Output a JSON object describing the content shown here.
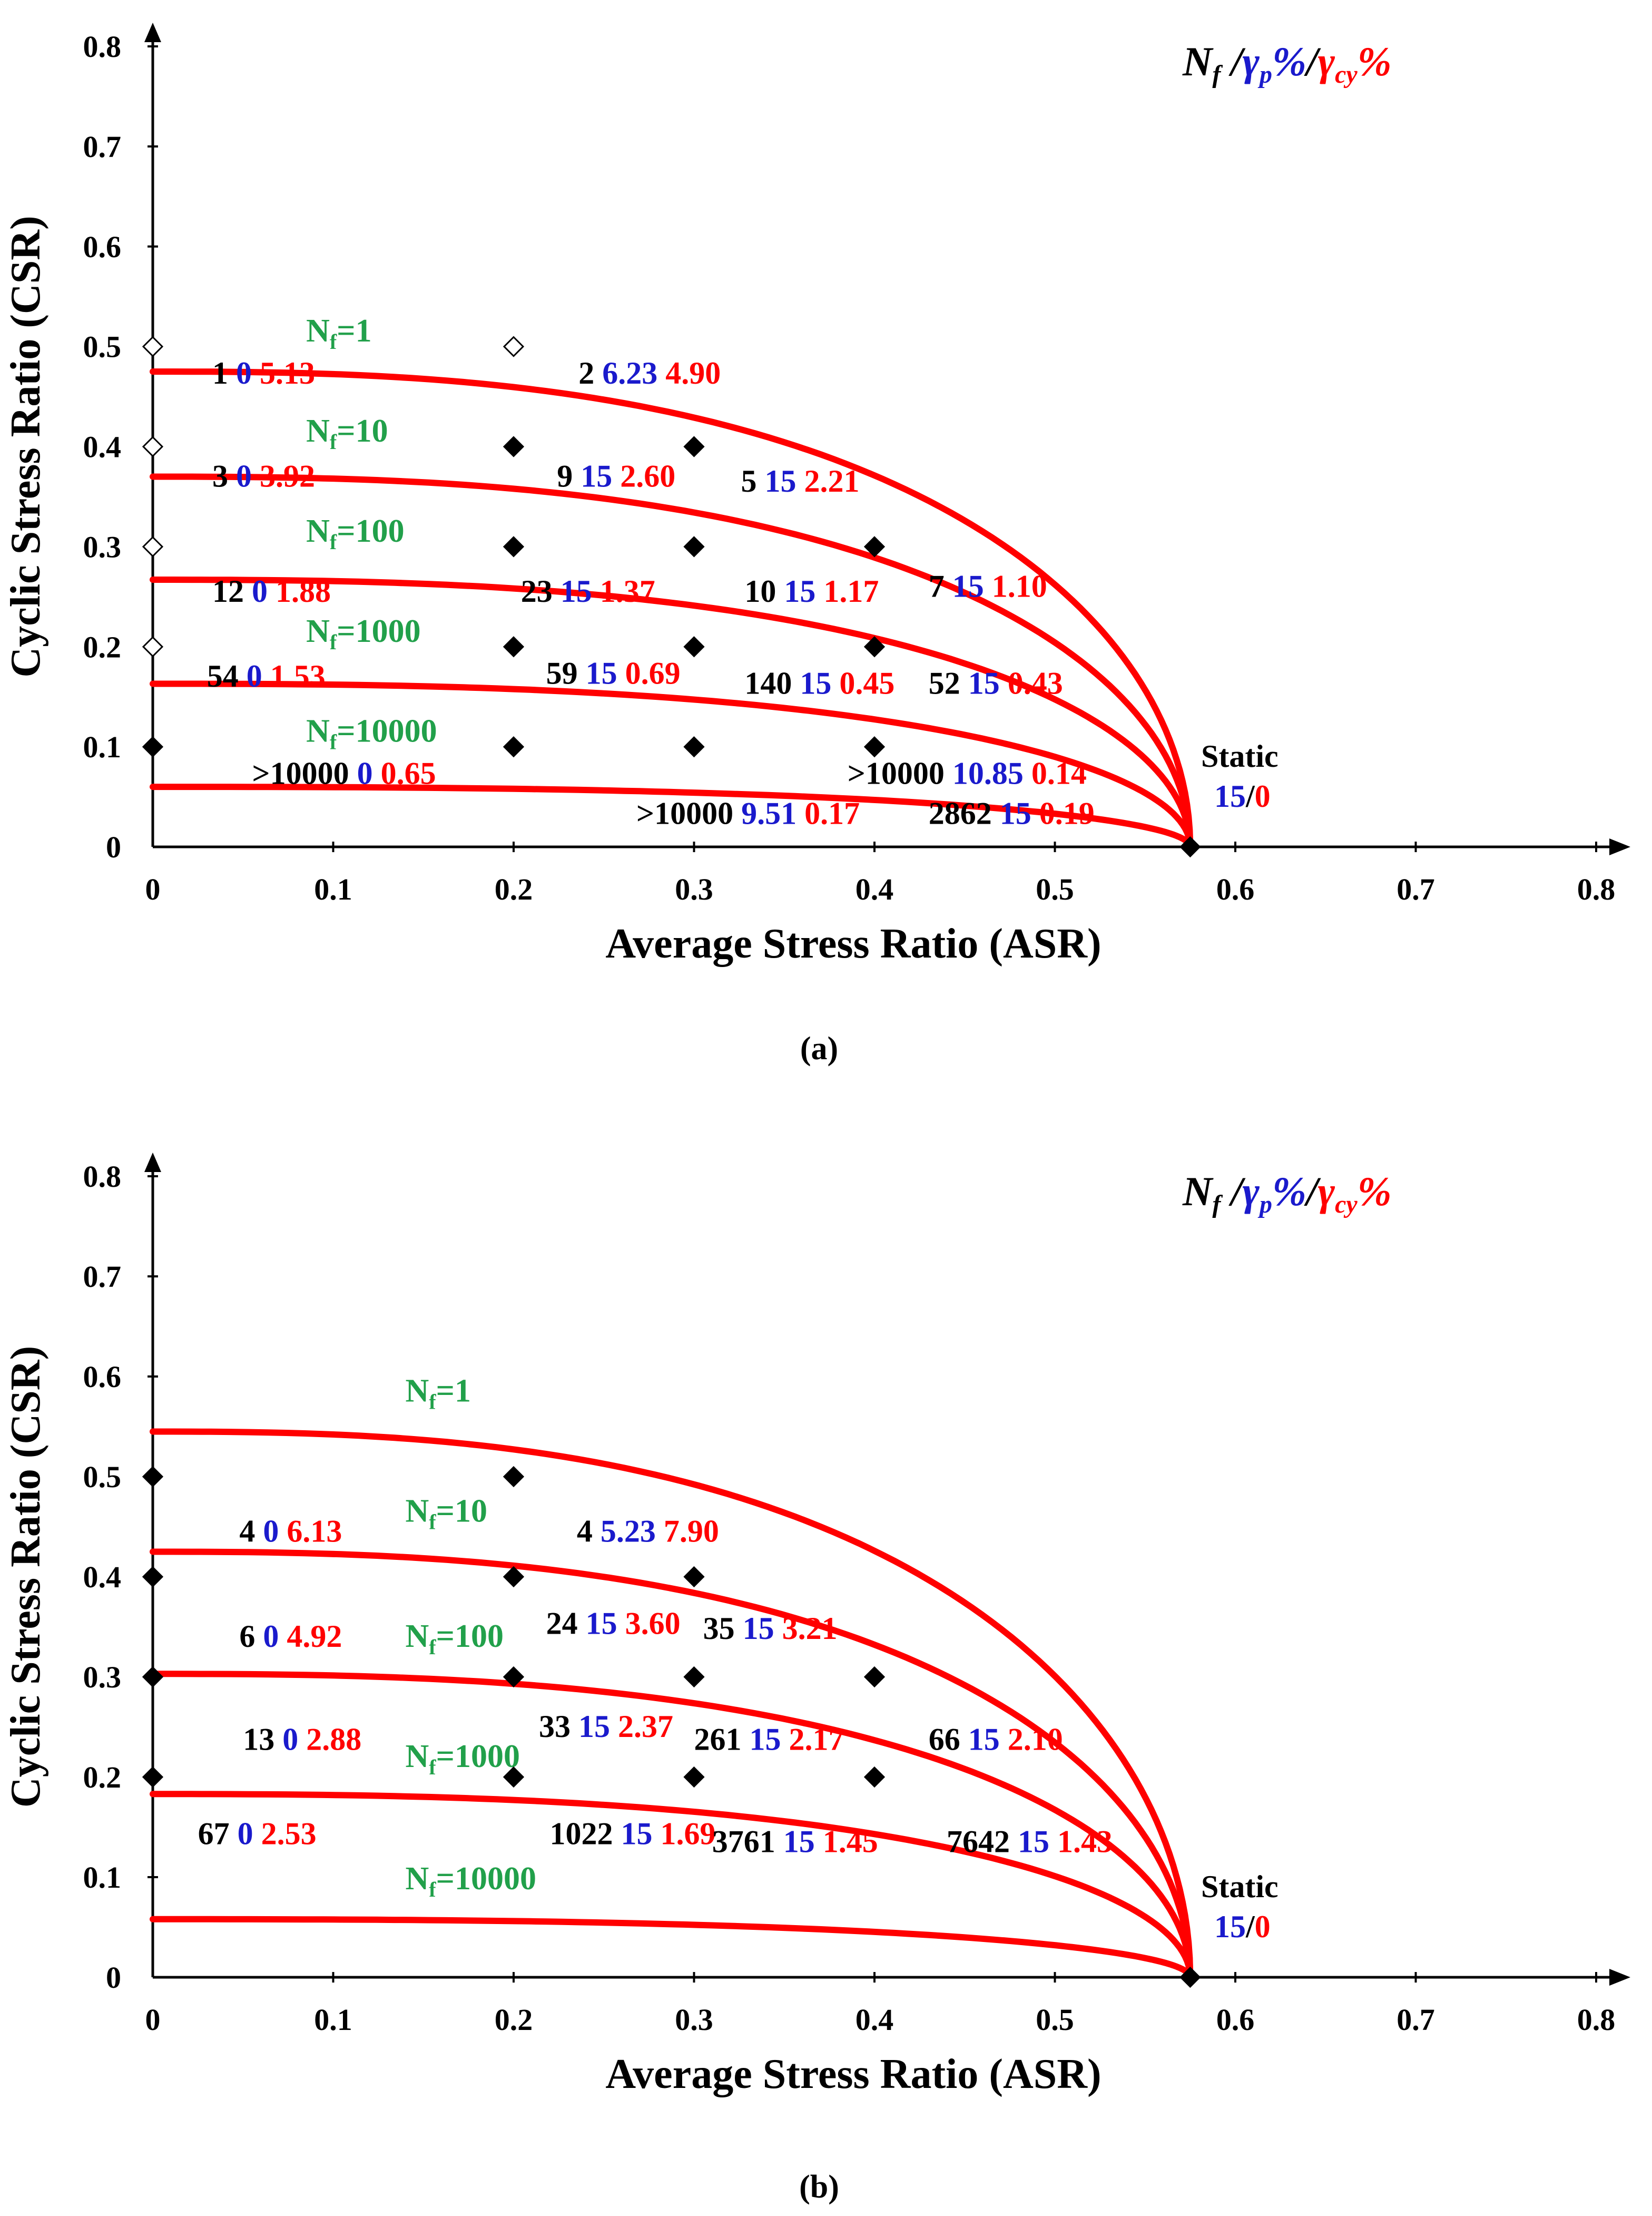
{
  "colors": {
    "curve": "#ff0000",
    "nf_label": "#21a04a",
    "plastic": "#1a1acc",
    "cyclic": "#ff0000",
    "text": "#000000"
  },
  "chart_data": [
    {
      "type": "scatter",
      "panel": "(a)",
      "caption": "(a)",
      "xlabel": "Average Stress Ratio (ASR)",
      "ylabel": "Cyclic Stress Ratio (CSR)",
      "xlim": [
        0,
        0.8
      ],
      "ylim": [
        0,
        0.8
      ],
      "xticks": [
        "0",
        "0.1",
        "0.2",
        "0.3",
        "0.4",
        "0.5",
        "0.6",
        "0.7",
        "0.8"
      ],
      "yticks": [
        "0",
        "0.1",
        "0.2",
        "0.3",
        "0.4",
        "0.5",
        "0.6",
        "0.7",
        "0.8"
      ],
      "legend": {
        "a": "N",
        "a_sub": "f",
        "sep1": " /",
        "b": "γ",
        "b_sub": "p",
        "b_pct": "%",
        "sep2": "/",
        "c": "γ",
        "c_sub": "cy",
        "c_pct": "%"
      },
      "static_label": {
        "title": "Static",
        "gp": "15",
        "slash": "/",
        "gcy": "0",
        "asr": 0.575,
        "csr": 0
      },
      "curves": [
        {
          "N": "1",
          "base": "N",
          "sub": "f",
          "eq": "=1",
          "csr0": 0.475,
          "label_at": [
            0.085,
            0.505
          ]
        },
        {
          "N": "10",
          "base": "N",
          "sub": "f",
          "eq": "=10",
          "csr0": 0.37,
          "label_at": [
            0.085,
            0.405
          ]
        },
        {
          "N": "100",
          "base": "N",
          "sub": "f",
          "eq": "=100",
          "csr0": 0.267,
          "label_at": [
            0.085,
            0.305
          ]
        },
        {
          "N": "1000",
          "base": "N",
          "sub": "f",
          "eq": "=1000",
          "csr0": 0.163,
          "label_at": [
            0.085,
            0.205
          ]
        },
        {
          "N": "10000",
          "base": "N",
          "sub": "f",
          "eq": "=10000",
          "csr0": 0.06,
          "label_at": [
            0.085,
            0.105
          ]
        }
      ],
      "points": [
        {
          "asr": 0,
          "csr": 0.5,
          "open": true,
          "nf": "1",
          "gp": "0",
          "gcy": "5.13",
          "lx": 0.033,
          "ly": 0.463
        },
        {
          "asr": 0,
          "csr": 0.4,
          "open": true,
          "nf": "3",
          "gp": "0",
          "gcy": "3.92",
          "lx": 0.033,
          "ly": 0.36
        },
        {
          "asr": 0,
          "csr": 0.3,
          "open": true,
          "nf": "12",
          "gp": "0",
          "gcy": "1.88",
          "lx": 0.033,
          "ly": 0.245
        },
        {
          "asr": 0,
          "csr": 0.2,
          "open": true,
          "nf": "54",
          "gp": "0",
          "gcy": "1.53",
          "lx": 0.03,
          "ly": 0.16
        },
        {
          "asr": 0,
          "csr": 0.1,
          "open": false,
          "nf": ">10000",
          "gp": "0",
          "gcy": "0.65",
          "lx": 0.055,
          "ly": 0.063
        },
        {
          "asr": 0.2,
          "csr": 0.5,
          "open": true,
          "nf": "2",
          "gp": "6.23",
          "gcy": "4.90",
          "lx": 0.236,
          "ly": 0.463
        },
        {
          "asr": 0.2,
          "csr": 0.4,
          "open": false,
          "nf": "9",
          "gp": "15",
          "gcy": "2.60",
          "lx": 0.224,
          "ly": 0.36
        },
        {
          "asr": 0.2,
          "csr": 0.3,
          "open": false,
          "nf": "23",
          "gp": "15",
          "gcy": "1.37",
          "lx": 0.204,
          "ly": 0.245
        },
        {
          "asr": 0.2,
          "csr": 0.2,
          "open": false,
          "nf": "59",
          "gp": "15",
          "gcy": "0.69",
          "lx": 0.218,
          "ly": 0.163
        },
        {
          "asr": 0.2,
          "csr": 0.1,
          "open": false,
          "nf": ">10000",
          "gp": "9.51",
          "gcy": "0.17",
          "lx": 0.268,
          "ly": 0.023
        },
        {
          "asr": 0.3,
          "csr": 0.4,
          "open": false,
          "nf": "5",
          "gp": "15",
          "gcy": "2.21",
          "lx": 0.326,
          "ly": 0.355
        },
        {
          "asr": 0.3,
          "csr": 0.3,
          "open": false,
          "nf": "10",
          "gp": "15",
          "gcy": "1.17",
          "lx": 0.328,
          "ly": 0.245
        },
        {
          "asr": 0.3,
          "csr": 0.2,
          "open": false,
          "nf": "140",
          "gp": "15",
          "gcy": "0.45",
          "lx": 0.328,
          "ly": 0.153
        },
        {
          "asr": 0.3,
          "csr": 0.1,
          "open": false,
          "nf": ">10000",
          "gp": "10.85",
          "gcy": "0.14",
          "lx": 0.385,
          "ly": 0.063
        },
        {
          "asr": 0.4,
          "csr": 0.3,
          "open": false,
          "nf": "7",
          "gp": "15",
          "gcy": "1.10",
          "lx": 0.43,
          "ly": 0.25
        },
        {
          "asr": 0.4,
          "csr": 0.2,
          "open": false,
          "nf": "52",
          "gp": "15",
          "gcy": "0.43",
          "lx": 0.43,
          "ly": 0.153
        },
        {
          "asr": 0.4,
          "csr": 0.1,
          "open": false,
          "nf": "2862",
          "gp": "15",
          "gcy": "0.19",
          "lx": 0.43,
          "ly": 0.023
        },
        {
          "asr": 0.575,
          "csr": 0,
          "open": false,
          "nf": "",
          "gp": "",
          "gcy": "",
          "lx": 0,
          "ly": 0
        }
      ]
    },
    {
      "type": "scatter",
      "panel": "(b)",
      "caption": "(b)",
      "xlabel": "Average Stress Ratio (ASR)",
      "ylabel": "Cyclic Stress Ratio (CSR)",
      "xlim": [
        0,
        0.8
      ],
      "ylim": [
        0,
        0.8
      ],
      "xticks": [
        "0",
        "0.1",
        "0.2",
        "0.3",
        "0.4",
        "0.5",
        "0.6",
        "0.7",
        "0.8"
      ],
      "yticks": [
        "0",
        "0.1",
        "0.2",
        "0.3",
        "0.4",
        "0.5",
        "0.6",
        "0.7",
        "0.8"
      ],
      "legend": {
        "a": "N",
        "a_sub": "f",
        "sep1": " /",
        "b": "γ",
        "b_sub": "p",
        "b_pct": "%",
        "sep2": "/",
        "c": "γ",
        "c_sub": "cy",
        "c_pct": "%"
      },
      "static_label": {
        "title": "Static",
        "gp": "15",
        "slash": "/",
        "gcy": "0",
        "asr": 0.575,
        "csr": 0
      },
      "curves": [
        {
          "N": "1",
          "base": "N",
          "sub": "f",
          "eq": "=1",
          "csr0": 0.545,
          "label_at": [
            0.14,
            0.575
          ]
        },
        {
          "N": "10",
          "base": "N",
          "sub": "f",
          "eq": "=10",
          "csr0": 0.425,
          "label_at": [
            0.14,
            0.455
          ]
        },
        {
          "N": "100",
          "base": "N",
          "sub": "f",
          "eq": "=100",
          "csr0": 0.303,
          "label_at": [
            0.14,
            0.33
          ]
        },
        {
          "N": "1000",
          "base": "N",
          "sub": "f",
          "eq": "=1000",
          "csr0": 0.183,
          "label_at": [
            0.14,
            0.21
          ]
        },
        {
          "N": "10000",
          "base": "N",
          "sub": "f",
          "eq": "=10000",
          "csr0": 0.058,
          "label_at": [
            0.14,
            0.088
          ]
        }
      ],
      "points": [
        {
          "asr": 0,
          "csr": 0.5,
          "open": false,
          "nf": "4",
          "gp": "0",
          "gcy": "6.13",
          "lx": 0.048,
          "ly": 0.435
        },
        {
          "asr": 0,
          "csr": 0.4,
          "open": false,
          "nf": "6",
          "gp": "0",
          "gcy": "4.92",
          "lx": 0.048,
          "ly": 0.33
        },
        {
          "asr": 0,
          "csr": 0.3,
          "open": false,
          "nf": "13",
          "gp": "0",
          "gcy": "2.88",
          "lx": 0.05,
          "ly": 0.227
        },
        {
          "asr": 0,
          "csr": 0.2,
          "open": false,
          "nf": "67",
          "gp": "0",
          "gcy": "2.53",
          "lx": 0.025,
          "ly": 0.133
        },
        {
          "asr": 0.2,
          "csr": 0.5,
          "open": false,
          "nf": "4",
          "gp": "5.23",
          "gcy": "7.90",
          "lx": 0.235,
          "ly": 0.435
        },
        {
          "asr": 0.2,
          "csr": 0.4,
          "open": false,
          "nf": "24",
          "gp": "15",
          "gcy": "3.60",
          "lx": 0.218,
          "ly": 0.343
        },
        {
          "asr": 0.2,
          "csr": 0.3,
          "open": false,
          "nf": "33",
          "gp": "15",
          "gcy": "2.37",
          "lx": 0.214,
          "ly": 0.24
        },
        {
          "asr": 0.2,
          "csr": 0.2,
          "open": false,
          "nf": "1022",
          "gp": "15",
          "gcy": "1.69",
          "lx": 0.22,
          "ly": 0.133
        },
        {
          "asr": 0.3,
          "csr": 0.4,
          "open": false,
          "nf": "35",
          "gp": "15",
          "gcy": "3.21",
          "lx": 0.305,
          "ly": 0.338
        },
        {
          "asr": 0.3,
          "csr": 0.3,
          "open": false,
          "nf": "261",
          "gp": "15",
          "gcy": "2.17",
          "lx": 0.3,
          "ly": 0.227
        },
        {
          "asr": 0.3,
          "csr": 0.2,
          "open": false,
          "nf": "3761",
          "gp": "15",
          "gcy": "1.45",
          "lx": 0.31,
          "ly": 0.125
        },
        {
          "asr": 0.4,
          "csr": 0.3,
          "open": false,
          "nf": "66",
          "gp": "15",
          "gcy": "2.10",
          "lx": 0.43,
          "ly": 0.227
        },
        {
          "asr": 0.4,
          "csr": 0.2,
          "open": false,
          "nf": "7642",
          "gp": "15",
          "gcy": "1.43",
          "lx": 0.44,
          "ly": 0.125
        },
        {
          "asr": 0.575,
          "csr": 0,
          "open": false,
          "nf": "",
          "gp": "",
          "gcy": "",
          "lx": 0,
          "ly": 0
        }
      ]
    }
  ]
}
